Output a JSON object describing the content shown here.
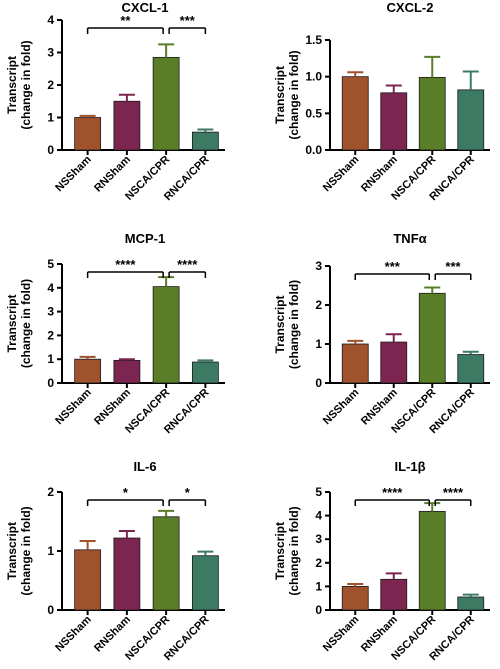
{
  "chart_data": [
    {
      "type": "bar",
      "title": "CXCL-1",
      "ylabel": "Transcript\n(change in fold)",
      "categories": [
        "NSSham",
        "RNSham",
        "NSCA/CPR",
        "RNCA/CPR"
      ],
      "values": [
        1.0,
        1.5,
        2.85,
        0.55
      ],
      "errors": [
        0.05,
        0.2,
        0.4,
        0.08
      ],
      "colors": [
        "#a0522d",
        "#7b2550",
        "#5a7d28",
        "#3d7a63"
      ],
      "ylim": [
        0,
        4
      ],
      "yticks": [
        0,
        1,
        2,
        3,
        4
      ],
      "significance": [
        {
          "from": 0,
          "to": 2,
          "label": "**"
        },
        {
          "from": 2,
          "to": 3,
          "label": "***"
        }
      ]
    },
    {
      "type": "bar",
      "title": "CXCL-2",
      "ylabel": "Transcript\n(change in fold)",
      "categories": [
        "NSSham",
        "RNSham",
        "NSCA/CPR",
        "RNCA/CPR"
      ],
      "values": [
        1.0,
        0.78,
        0.99,
        0.82
      ],
      "errors": [
        0.06,
        0.1,
        0.28,
        0.25
      ],
      "colors": [
        "#a0522d",
        "#7b2550",
        "#5a7d28",
        "#3d7a63"
      ],
      "ylim": [
        0,
        1.5
      ],
      "yticks": [
        "0.0",
        "0.5",
        "1.0",
        "1.5"
      ],
      "significance": []
    },
    {
      "type": "bar",
      "title": "MCP-1",
      "ylabel": "Transcript\n(change in fold)",
      "categories": [
        "NSSham",
        "RNSham",
        "NSCA/CPR",
        "RNCA/CPR"
      ],
      "values": [
        1.0,
        0.95,
        4.05,
        0.88
      ],
      "errors": [
        0.1,
        0.05,
        0.4,
        0.07
      ],
      "colors": [
        "#a0522d",
        "#7b2550",
        "#5a7d28",
        "#3d7a63"
      ],
      "ylim": [
        0,
        5
      ],
      "yticks": [
        0,
        1,
        2,
        3,
        4,
        5
      ],
      "significance": [
        {
          "from": 0,
          "to": 2,
          "label": "****"
        },
        {
          "from": 2,
          "to": 3,
          "label": "****"
        }
      ]
    },
    {
      "type": "bar",
      "title": "TNFα",
      "ylabel": "Transcript\n(change in fold)",
      "categories": [
        "NSSham",
        "RNSham",
        "NSCA/CPR",
        "RNCA/CPR"
      ],
      "values": [
        1.0,
        1.05,
        2.3,
        0.73
      ],
      "errors": [
        0.08,
        0.2,
        0.15,
        0.07
      ],
      "colors": [
        "#a0522d",
        "#7b2550",
        "#5a7d28",
        "#3d7a63"
      ],
      "ylim": [
        0,
        3
      ],
      "yticks": [
        0,
        1,
        2,
        3
      ],
      "significance": [
        {
          "from": 0,
          "to": 2,
          "label": "***"
        },
        {
          "from": 2,
          "to": 3,
          "label": "***"
        }
      ]
    },
    {
      "type": "bar",
      "title": "IL-6",
      "ylabel": "Transcript\n(change in fold)",
      "categories": [
        "NSSham",
        "RNSham",
        "NSCA/CPR",
        "RNCA/CPR"
      ],
      "values": [
        1.02,
        1.22,
        1.58,
        0.92
      ],
      "errors": [
        0.15,
        0.12,
        0.1,
        0.07
      ],
      "colors": [
        "#a0522d",
        "#7b2550",
        "#5a7d28",
        "#3d7a63"
      ],
      "ylim": [
        0,
        2
      ],
      "yticks": [
        0,
        1,
        2
      ],
      "significance": [
        {
          "from": 0,
          "to": 2,
          "label": "*"
        },
        {
          "from": 2,
          "to": 3,
          "label": "*"
        }
      ]
    },
    {
      "type": "bar",
      "title": "IL-1β",
      "ylabel": "Transcript\n(change in fold)",
      "categories": [
        "NSSham",
        "RNSham",
        "NSCA/CPR",
        "RNCA/CPR"
      ],
      "values": [
        1.0,
        1.3,
        4.18,
        0.55
      ],
      "errors": [
        0.1,
        0.25,
        0.35,
        0.1
      ],
      "colors": [
        "#a0522d",
        "#7b2550",
        "#5a7d28",
        "#3d7a63"
      ],
      "ylim": [
        0,
        5
      ],
      "yticks": [
        0,
        1,
        2,
        3,
        4,
        5
      ],
      "significance": [
        {
          "from": 0,
          "to": 2,
          "label": "****"
        },
        {
          "from": 2,
          "to": 3,
          "label": "****"
        }
      ]
    }
  ]
}
